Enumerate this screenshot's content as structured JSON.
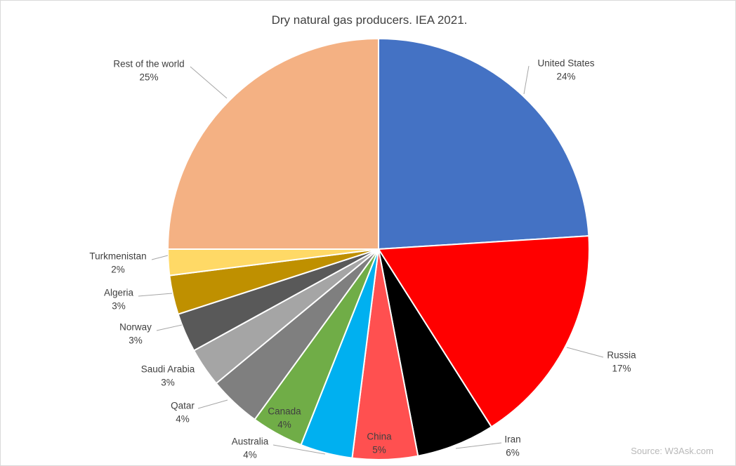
{
  "chart_data": {
    "type": "pie",
    "title": "Dry natural gas producers. IEA 2021.",
    "source": "Source: W3Ask.com",
    "slices": [
      {
        "label": "United States",
        "value": 24,
        "value_label": "24%",
        "color": "#4472C4"
      },
      {
        "label": "Russia",
        "value": 17,
        "value_label": "17%",
        "color": "#FF0000"
      },
      {
        "label": "Iran",
        "value": 6,
        "value_label": "6%",
        "color": "#000000"
      },
      {
        "label": "China",
        "value": 5,
        "value_label": "5%",
        "color": "#FF5050"
      },
      {
        "label": "Australia",
        "value": 4,
        "value_label": "4%",
        "color": "#00B0F0"
      },
      {
        "label": "Canada",
        "value": 4,
        "value_label": "4%",
        "color": "#70AD47"
      },
      {
        "label": "Qatar",
        "value": 4,
        "value_label": "4%",
        "color": "#7F7F7F"
      },
      {
        "label": "Saudi Arabia",
        "value": 3,
        "value_label": "3%",
        "color": "#A5A5A5"
      },
      {
        "label": "Norway",
        "value": 3,
        "value_label": "3%",
        "color": "#595959"
      },
      {
        "label": "Algeria",
        "value": 3,
        "value_label": "3%",
        "color": "#BF9000"
      },
      {
        "label": "Turkmenistan",
        "value": 2,
        "value_label": "2%",
        "color": "#FFD966"
      },
      {
        "label": "Rest of the world",
        "value": 25,
        "value_label": "25%",
        "color": "#F4B183"
      }
    ],
    "start_angle": "12 o'clock",
    "direction": "clockwise"
  }
}
